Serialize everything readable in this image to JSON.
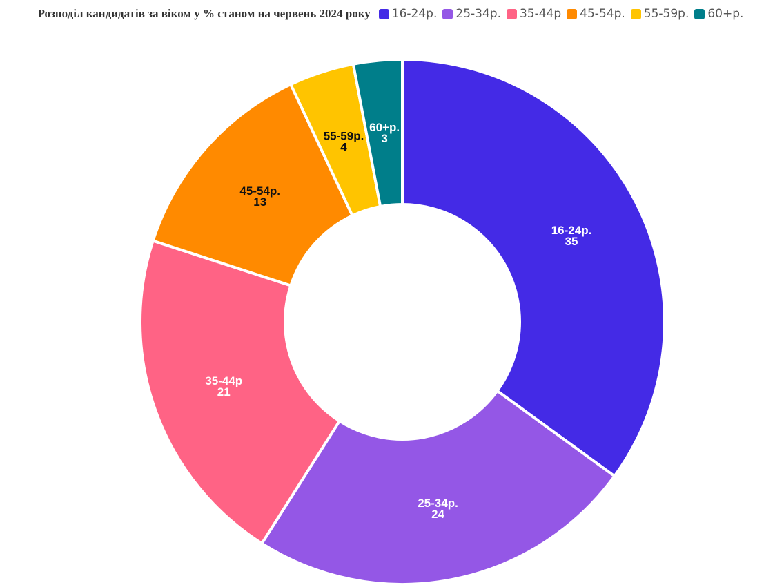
{
  "chart_data": {
    "type": "donut",
    "title": "Розподіл кандидатів за віком у % станом на червень 2024 року",
    "categories": [
      "16-24р.",
      "25-34р.",
      "35-44р",
      "45-54р.",
      "55-59р.",
      "60+р."
    ],
    "values": [
      35,
      24,
      21,
      13,
      4,
      3
    ],
    "colors": [
      "#442ae6",
      "#9457e6",
      "#ff6385",
      "#ff8a00",
      "#ffc400",
      "#007e8a"
    ],
    "label_colors": [
      "#ffffff",
      "#ffffff",
      "#ffffff",
      "#111111",
      "#111111",
      "#ffffff"
    ],
    "legend": "top"
  }
}
